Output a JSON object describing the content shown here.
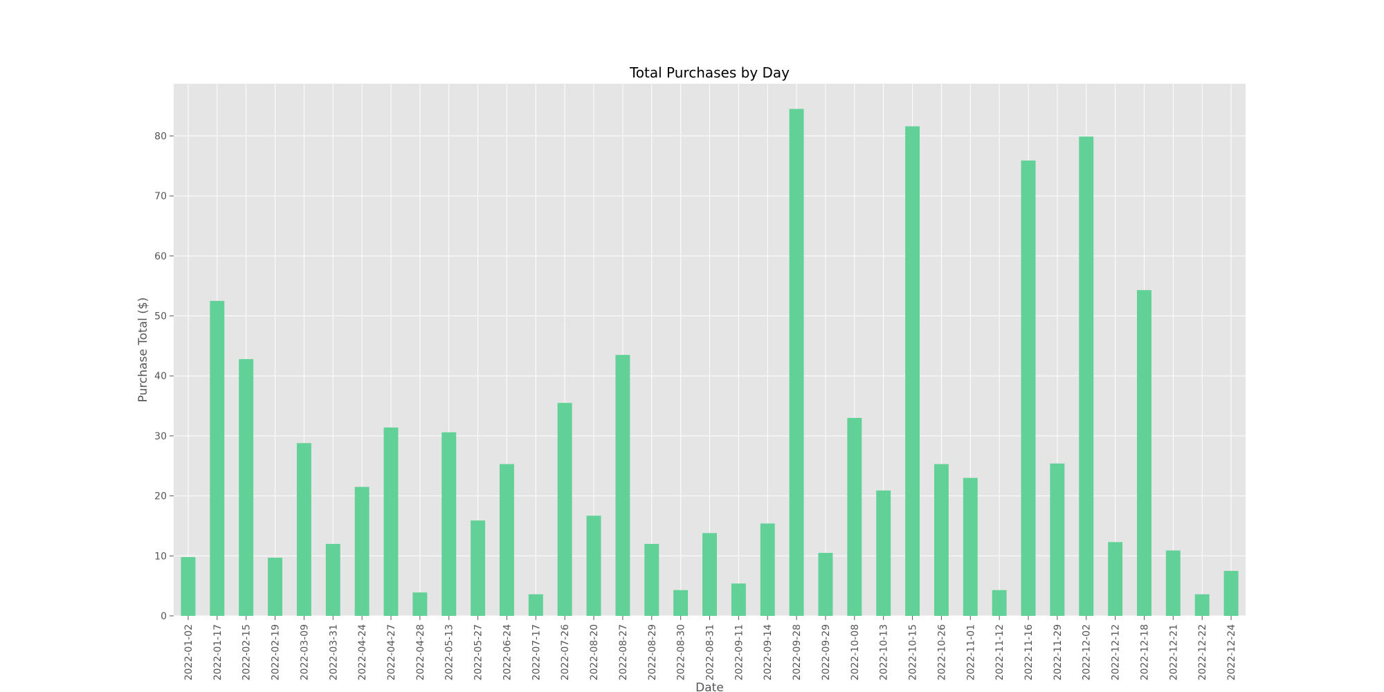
{
  "chart_data": {
    "type": "bar",
    "title": "Total Purchases by Day",
    "xlabel": "Date",
    "ylabel": "Purchase Total ($)",
    "ylim": [
      0,
      88.7
    ],
    "yticks": [
      0,
      10,
      20,
      30,
      40,
      50,
      60,
      70,
      80
    ],
    "grid": true,
    "legend": "none",
    "bar_color": "#62d198",
    "plot_background": "#e5e5e5",
    "grid_color": "#ffffff",
    "categories": [
      "2022-01-02",
      "2022-01-17",
      "2022-02-15",
      "2022-02-19",
      "2022-03-09",
      "2022-03-31",
      "2022-04-24",
      "2022-04-27",
      "2022-04-28",
      "2022-05-13",
      "2022-05-27",
      "2022-06-24",
      "2022-07-17",
      "2022-07-26",
      "2022-08-20",
      "2022-08-27",
      "2022-08-29",
      "2022-08-30",
      "2022-08-31",
      "2022-09-11",
      "2022-09-14",
      "2022-09-28",
      "2022-09-29",
      "2022-10-08",
      "2022-10-13",
      "2022-10-15",
      "2022-10-26",
      "2022-11-01",
      "2022-11-12",
      "2022-11-16",
      "2022-11-29",
      "2022-12-02",
      "2022-12-12",
      "2022-12-18",
      "2022-12-21",
      "2022-12-22",
      "2022-12-24"
    ],
    "values": [
      9.8,
      52.5,
      42.8,
      9.7,
      28.8,
      12.0,
      21.5,
      31.4,
      3.9,
      30.6,
      15.9,
      25.3,
      3.6,
      35.5,
      16.7,
      43.5,
      12.0,
      4.3,
      13.8,
      5.4,
      15.4,
      84.5,
      10.5,
      33.0,
      20.9,
      81.6,
      25.3,
      23.0,
      4.3,
      75.9,
      25.4,
      79.9,
      12.3,
      54.3,
      10.9,
      3.6,
      7.5
    ]
  }
}
